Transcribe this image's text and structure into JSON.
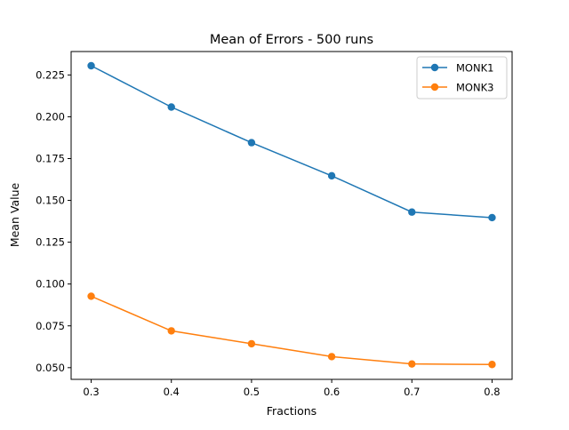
{
  "chart_data": {
    "type": "line",
    "title": "Mean of Errors - 500 runs",
    "xlabel": "Fractions",
    "ylabel": "Mean Value",
    "x": [
      0.3,
      0.4,
      0.5,
      0.6,
      0.7,
      0.8
    ],
    "x_ticks": [
      "0.3",
      "0.4",
      "0.5",
      "0.6",
      "0.7",
      "0.8"
    ],
    "y_ticks": [
      "0.050",
      "0.075",
      "0.100",
      "0.125",
      "0.150",
      "0.175",
      "0.200",
      "0.225"
    ],
    "xlim": [
      0.275,
      0.825
    ],
    "ylim": [
      0.043,
      0.239
    ],
    "grid": false,
    "legend_position": "top-right",
    "series": [
      {
        "name": "MONK1",
        "color": "#1f77b4",
        "values": [
          0.2305,
          0.2058,
          0.1845,
          0.1647,
          0.143,
          0.1397
        ]
      },
      {
        "name": "MONK3",
        "color": "#ff7f0e",
        "values": [
          0.0927,
          0.072,
          0.0643,
          0.0566,
          0.0522,
          0.0519
        ]
      }
    ]
  }
}
